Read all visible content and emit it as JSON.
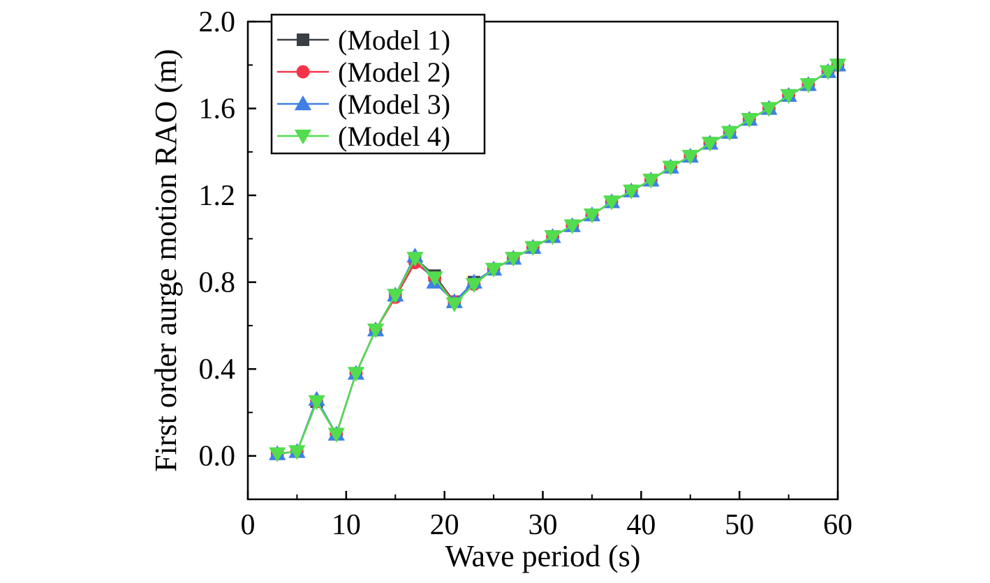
{
  "chart_data": {
    "type": "line",
    "title": "",
    "xlabel": "Wave period (s)",
    "ylabel": "First order aurge motion RAO (m)",
    "xlim": [
      0,
      60
    ],
    "ylim": [
      -0.2,
      2.0
    ],
    "xticks": [
      "0",
      "10",
      "20",
      "30",
      "40",
      "50",
      "60"
    ],
    "yticks": [
      "0.0",
      "0.4",
      "0.8",
      "1.2",
      "1.6",
      "2.0"
    ],
    "grid": false,
    "legend_position": "top-left",
    "x": [
      3,
      5,
      7,
      9,
      11,
      13,
      15,
      17,
      19,
      21,
      23,
      25,
      27,
      29,
      31,
      33,
      35,
      37,
      39,
      41,
      43,
      45,
      47,
      49,
      51,
      53,
      55,
      57,
      59,
      60
    ],
    "series": [
      {
        "name": "(Model 1)",
        "color": "#3a3f46",
        "marker": "square",
        "values": [
          0.01,
          0.02,
          0.25,
          0.1,
          0.38,
          0.58,
          0.74,
          0.91,
          0.83,
          0.71,
          0.8,
          0.86,
          0.91,
          0.96,
          1.01,
          1.06,
          1.11,
          1.17,
          1.22,
          1.27,
          1.33,
          1.38,
          1.44,
          1.49,
          1.55,
          1.6,
          1.66,
          1.71,
          1.77,
          1.8
        ]
      },
      {
        "name": "(Model 2)",
        "color": "#f5344a",
        "marker": "circle",
        "values": [
          0.01,
          0.02,
          0.25,
          0.1,
          0.38,
          0.58,
          0.73,
          0.89,
          0.82,
          0.71,
          0.79,
          0.86,
          0.91,
          0.96,
          1.01,
          1.06,
          1.11,
          1.17,
          1.22,
          1.27,
          1.33,
          1.38,
          1.44,
          1.49,
          1.55,
          1.6,
          1.66,
          1.71,
          1.77,
          1.8
        ]
      },
      {
        "name": "(Model 3)",
        "color": "#3f7fe6",
        "marker": "triangle-up",
        "values": [
          0.01,
          0.02,
          0.26,
          0.1,
          0.38,
          0.58,
          0.74,
          0.92,
          0.8,
          0.71,
          0.8,
          0.86,
          0.91,
          0.96,
          1.01,
          1.06,
          1.11,
          1.17,
          1.22,
          1.27,
          1.33,
          1.38,
          1.44,
          1.49,
          1.55,
          1.6,
          1.66,
          1.71,
          1.77,
          1.8
        ]
      },
      {
        "name": "(Model 4)",
        "color": "#52dc4e",
        "marker": "triangle-down",
        "values": [
          0.01,
          0.02,
          0.25,
          0.1,
          0.38,
          0.58,
          0.74,
          0.91,
          0.82,
          0.7,
          0.79,
          0.86,
          0.91,
          0.96,
          1.01,
          1.06,
          1.11,
          1.17,
          1.22,
          1.27,
          1.33,
          1.38,
          1.44,
          1.49,
          1.55,
          1.6,
          1.66,
          1.71,
          1.77,
          1.8
        ]
      }
    ]
  }
}
